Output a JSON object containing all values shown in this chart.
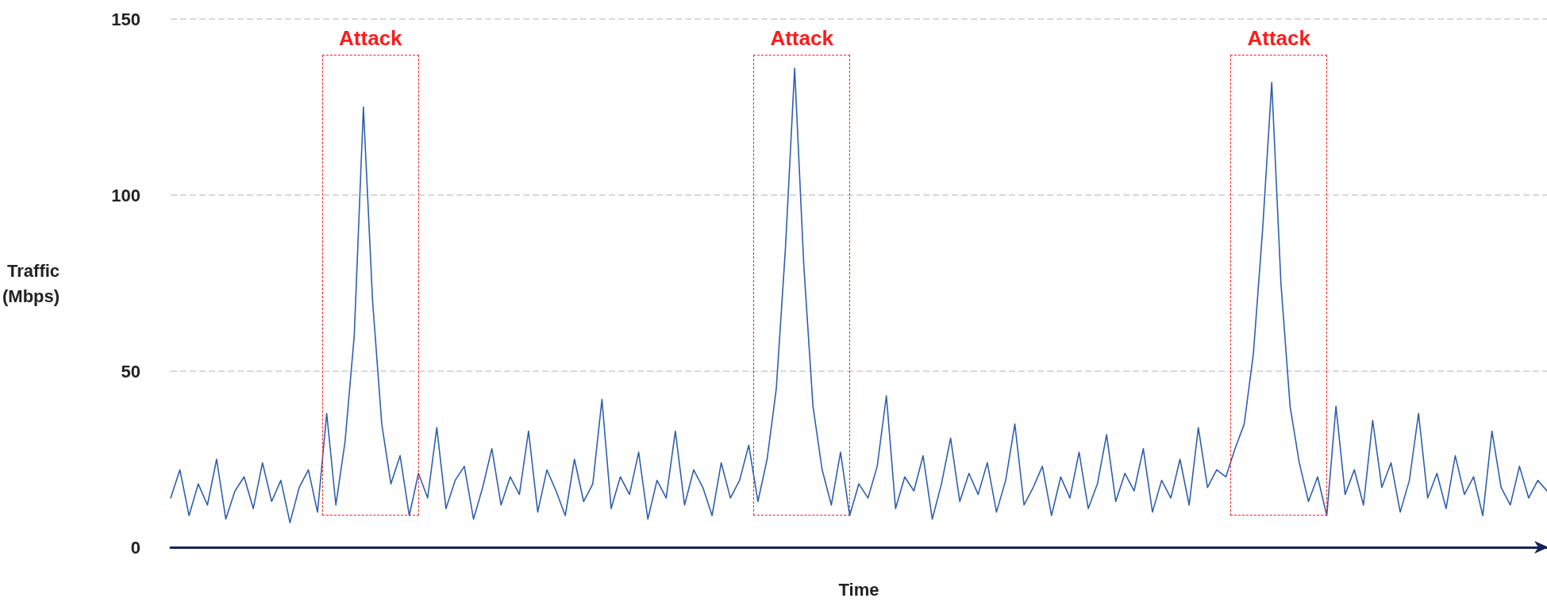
{
  "chart_data": {
    "type": "line",
    "xlabel": "Time",
    "ylabel": "Traffic\n(Mbps)",
    "categories": [
      null,
      null,
      null,
      null,
      null,
      null,
      null,
      null,
      null,
      null,
      null,
      null,
      null,
      null,
      null,
      null,
      null,
      null,
      null,
      null,
      null,
      null,
      null,
      null,
      null,
      null,
      null,
      null,
      null,
      null,
      null,
      null,
      null,
      null,
      null,
      null,
      null,
      null,
      null,
      null,
      null,
      null,
      null,
      null,
      null,
      null,
      null,
      null,
      null,
      null,
      null,
      null,
      null,
      null,
      null,
      null,
      null,
      null,
      null,
      null,
      null,
      null,
      null,
      null,
      null,
      null,
      null,
      null,
      null,
      null,
      null,
      null,
      null,
      null,
      null,
      null,
      null,
      null,
      null,
      null,
      null,
      null,
      null,
      null,
      null,
      null,
      null,
      null,
      null,
      null,
      null,
      null,
      null,
      null,
      null,
      null,
      null,
      null,
      null,
      null,
      null,
      null,
      null,
      null,
      null,
      null,
      null,
      null,
      null,
      null,
      null,
      null,
      null,
      null,
      null,
      null,
      null,
      null,
      null,
      null,
      null,
      null,
      null,
      null,
      null,
      null,
      null,
      null,
      null,
      null,
      null,
      null,
      null,
      null,
      null,
      null,
      null,
      null,
      null,
      null,
      null,
      null,
      null,
      null,
      null,
      null,
      null,
      null,
      null,
      null,
      null
    ],
    "series": [
      {
        "color": "#2f5fae",
        "values": [
          14,
          22,
          9,
          18,
          12,
          25,
          8,
          16,
          20,
          11,
          24,
          13,
          19,
          7,
          17,
          22,
          10,
          38,
          12,
          30,
          60,
          125,
          70,
          35,
          18,
          26,
          9,
          21,
          14,
          34,
          11,
          19,
          23,
          8,
          17,
          28,
          12,
          20,
          15,
          33,
          10,
          22,
          16,
          9,
          25,
          13,
          18,
          42,
          11,
          20,
          15,
          27,
          8,
          19,
          14,
          33,
          12,
          22,
          17,
          9,
          24,
          14,
          19,
          29,
          13,
          25,
          45,
          85,
          136,
          80,
          40,
          22,
          12,
          27,
          9,
          18,
          14,
          23,
          43,
          11,
          20,
          16,
          26,
          8,
          18,
          31,
          13,
          21,
          15,
          24,
          10,
          19,
          35,
          12,
          17,
          23,
          9,
          20,
          14,
          27,
          11,
          18,
          32,
          13,
          21,
          16,
          28,
          10,
          19,
          14,
          25,
          12,
          34,
          17,
          22,
          20,
          28,
          35,
          55,
          90,
          132,
          75,
          40,
          24,
          13,
          20,
          9,
          40,
          15,
          22,
          12,
          36,
          17,
          24,
          10,
          19,
          38,
          14,
          21,
          11,
          26,
          15,
          20,
          9,
          33,
          17,
          12,
          23,
          14,
          19,
          16
        ]
      }
    ],
    "ylim": [
      0,
      150
    ],
    "yticks": [
      0,
      50,
      100,
      150
    ],
    "tick_labels": "y",
    "grid": "y",
    "marker": "none",
    "line_style": "solid",
    "annotations": [
      "Attack",
      "Attack",
      "Attack"
    ]
  }
}
